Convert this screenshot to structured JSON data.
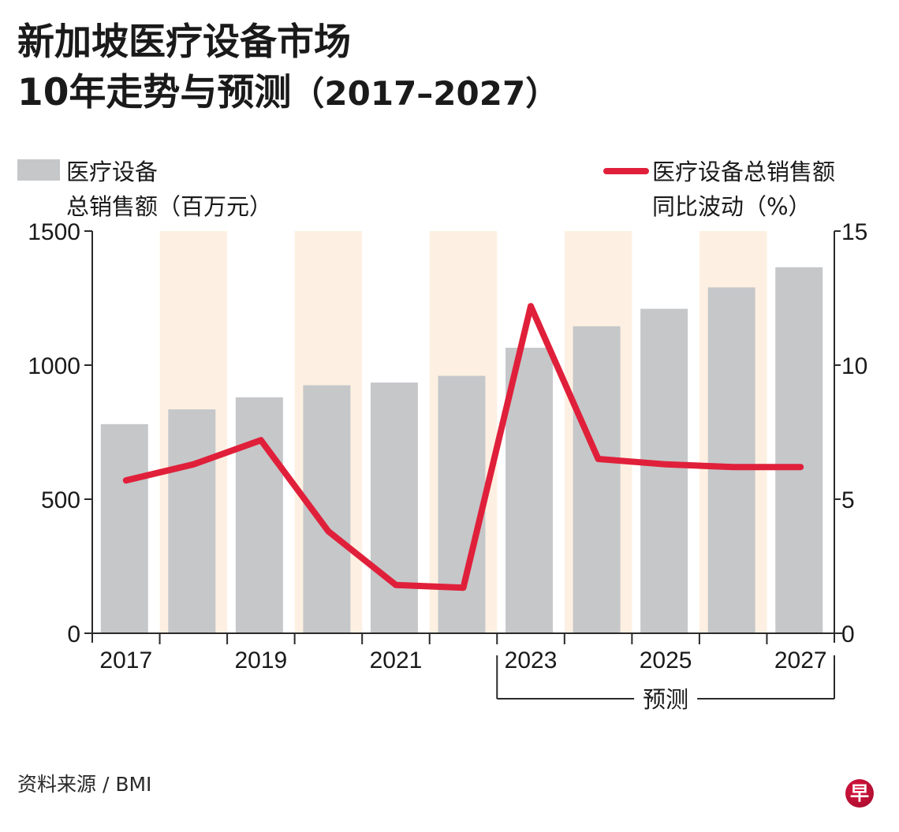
{
  "title": {
    "line1": "新加坡医疗设备市场",
    "line2_main": "10年走势与预测",
    "line2_paren": "（2017–2027）"
  },
  "legend": {
    "bars": {
      "line1": "医疗设备",
      "line2": "总销售额（百万元）",
      "color": "#c5c7c9"
    },
    "line": {
      "line1": "医疗设备总销售额",
      "line2": "同比波动（%）",
      "color": "#e0203a"
    }
  },
  "forecast_label": "预测",
  "source": "资料来源 / BMI",
  "logo_glyph": "早",
  "colors": {
    "bar": "#c5c7c9",
    "line": "#e0203a",
    "band": "#fdf0e2",
    "axis": "#2a2a2a"
  },
  "chart_data": {
    "type": "bar+line",
    "title": "新加坡医疗设备市场 10年走势与预测（2017–2027）",
    "categories": [
      "2017",
      "2018",
      "2019",
      "2020",
      "2021",
      "2022",
      "2023",
      "2024",
      "2025",
      "2026",
      "2027"
    ],
    "x_tick_labels": [
      "2017",
      "",
      "2019",
      "",
      "2021",
      "",
      "2023",
      "",
      "2025",
      "",
      "2027"
    ],
    "series": [
      {
        "name": "医疗设备总销售额（百万元）",
        "type": "bar",
        "axis": "left",
        "values": [
          780,
          835,
          880,
          925,
          935,
          960,
          1065,
          1145,
          1210,
          1290,
          1365
        ]
      },
      {
        "name": "医疗设备总销售额同比波动（%）",
        "type": "line",
        "axis": "right",
        "values": [
          5.7,
          6.3,
          7.2,
          3.8,
          1.8,
          1.7,
          12.2,
          6.5,
          6.3,
          6.2,
          6.2
        ]
      }
    ],
    "left_axis": {
      "label": "医疗设备总销售额（百万元）",
      "ylim": [
        0,
        1500
      ],
      "ticks": [
        0,
        500,
        1000,
        1500
      ]
    },
    "right_axis": {
      "label": "医疗设备总销售额同比波动（%）",
      "ylim": [
        0,
        15
      ],
      "ticks": [
        0,
        5,
        10,
        15
      ]
    },
    "shaded_categories": [
      "2018",
      "2020",
      "2022",
      "2024",
      "2026"
    ],
    "forecast_range": [
      "2023",
      "2027"
    ],
    "forecast_label": "预测",
    "grid": false,
    "legend": "top"
  }
}
